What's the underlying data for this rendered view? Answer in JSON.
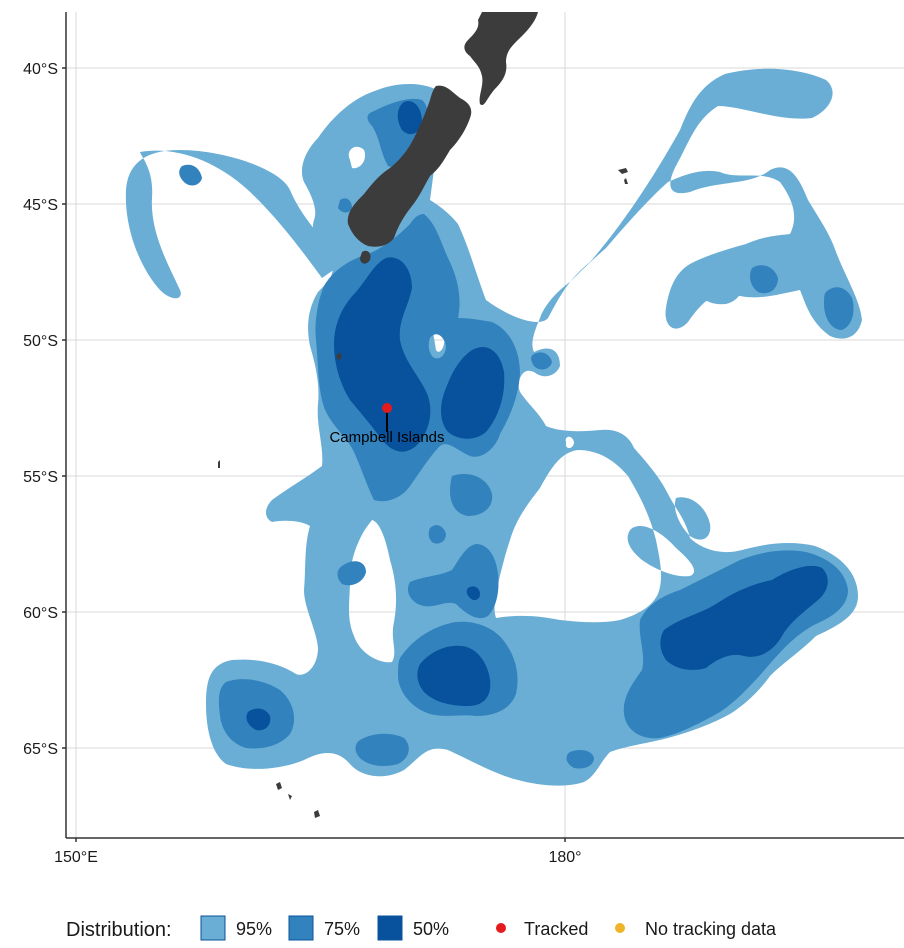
{
  "map": {
    "latitude_labels": [
      "40°S",
      "45°S",
      "50°S",
      "55°S",
      "60°S",
      "65°S"
    ],
    "longitude_labels": [
      "150°E",
      "180°"
    ],
    "site_label": "Campbell Islands"
  },
  "legend": {
    "title": "Distribution:",
    "levels": [
      {
        "label": "95%",
        "color": "#6aaed6"
      },
      {
        "label": "75%",
        "color": "#3282bd"
      },
      {
        "label": "50%",
        "color": "#08519c"
      }
    ],
    "points": [
      {
        "label": "Tracked",
        "color": "#e41a1c"
      },
      {
        "label": "No tracking data",
        "color": "#f0b429"
      }
    ]
  },
  "colors": {
    "land": "#3c3c3c",
    "grid": "#d9d9d9",
    "axis": "#333333"
  }
}
